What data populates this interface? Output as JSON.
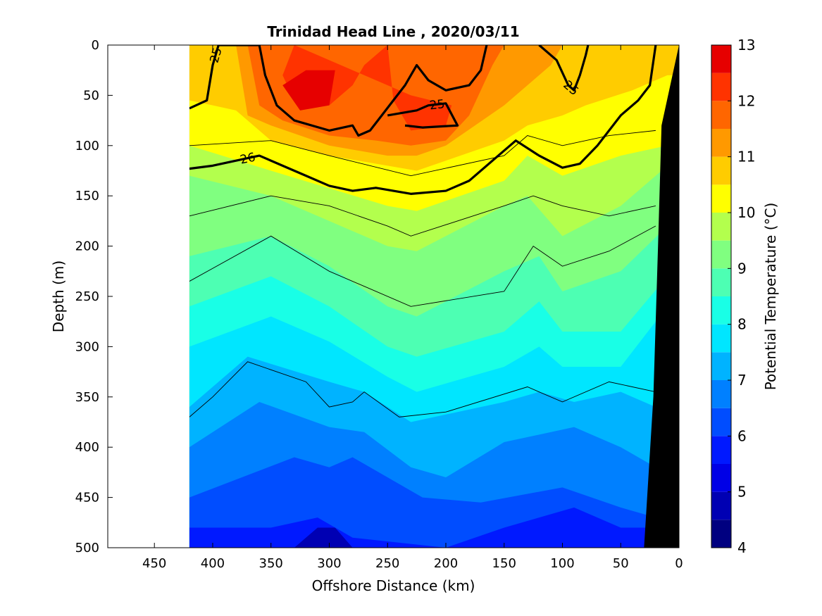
{
  "chart_data": {
    "type": "heatmap",
    "title": "Trinidad Head Line , 2020/03/11",
    "xlabel": "Offshore Distance (km)",
    "ylabel": "Depth (m)",
    "colorbar_label": "Potential Temperature (°C)",
    "xlim": [
      490,
      0
    ],
    "ylim": [
      0,
      500
    ],
    "x_direction": "reversed",
    "y_direction": "reversed",
    "x_ticks": [
      450,
      400,
      350,
      300,
      250,
      200,
      150,
      100,
      50,
      0
    ],
    "y_ticks": [
      0,
      50,
      100,
      150,
      200,
      250,
      300,
      350,
      400,
      450,
      500
    ],
    "colorbar_ticks": [
      4,
      5,
      6,
      7,
      8,
      9,
      10,
      11,
      12,
      13
    ],
    "colorbar_levels": [
      {
        "min": 4.0,
        "max": 4.5,
        "color": "#000080"
      },
      {
        "min": 4.5,
        "max": 5.0,
        "color": "#0000b3"
      },
      {
        "min": 5.0,
        "max": 5.5,
        "color": "#0000e6"
      },
      {
        "min": 5.5,
        "max": 6.0,
        "color": "#0019ff"
      },
      {
        "min": 6.0,
        "max": 6.5,
        "color": "#004dff"
      },
      {
        "min": 6.5,
        "max": 7.0,
        "color": "#0080ff"
      },
      {
        "min": 7.0,
        "max": 7.5,
        "color": "#00b3ff"
      },
      {
        "min": 7.5,
        "max": 8.0,
        "color": "#00e6ff"
      },
      {
        "min": 8.0,
        "max": 8.5,
        "color": "#19ffe6"
      },
      {
        "min": 8.5,
        "max": 9.0,
        "color": "#4dffb3"
      },
      {
        "min": 9.0,
        "max": 9.5,
        "color": "#80ff80"
      },
      {
        "min": 9.5,
        "max": 10.0,
        "color": "#b3ff4d"
      },
      {
        "min": 10.0,
        "max": 10.5,
        "color": "#ffff00"
      },
      {
        "min": 10.5,
        "max": 11.0,
        "color": "#ffcc00"
      },
      {
        "min": 11.0,
        "max": 11.5,
        "color": "#ff9900"
      },
      {
        "min": 11.5,
        "max": 12.0,
        "color": "#ff6600"
      },
      {
        "min": 12.0,
        "max": 12.5,
        "color": "#ff3300"
      },
      {
        "min": 12.5,
        "max": 13.0,
        "color": "#e60000"
      }
    ],
    "data_extent_km": [
      420,
      0
    ],
    "temperature_bands": [
      {
        "level": 10,
        "color": "#ffff00",
        "depth_profile": [
          [
            420,
            80
          ],
          [
            400,
            90
          ],
          [
            350,
            110
          ],
          [
            300,
            125
          ],
          [
            250,
            135
          ],
          [
            225,
            140
          ],
          [
            200,
            130
          ],
          [
            150,
            115
          ],
          [
            130,
            95
          ],
          [
            100,
            90
          ],
          [
            70,
            85
          ],
          [
            30,
            80
          ],
          [
            10,
            80
          ]
        ]
      },
      {
        "level": 10.5,
        "color": "#ffcc00",
        "depth_profile": [
          [
            420,
            55
          ],
          [
            400,
            60
          ],
          [
            380,
            65
          ],
          [
            350,
            95
          ],
          [
            300,
            110
          ],
          [
            250,
            120
          ],
          [
            225,
            125
          ],
          [
            200,
            115
          ],
          [
            150,
            95
          ],
          [
            130,
            80
          ],
          [
            100,
            70
          ],
          [
            80,
            60
          ],
          [
            40,
            45
          ],
          [
            10,
            30
          ]
        ]
      },
      {
        "level": 11,
        "color": "#ff9900",
        "depth_profile": [
          [
            420,
            0
          ],
          [
            380,
            0
          ],
          [
            370,
            70
          ],
          [
            350,
            80
          ],
          [
            300,
            100
          ],
          [
            250,
            110
          ],
          [
            225,
            110
          ],
          [
            200,
            100
          ],
          [
            175,
            80
          ],
          [
            150,
            60
          ],
          [
            130,
            40
          ],
          [
            110,
            20
          ],
          [
            100,
            0
          ],
          [
            380,
            0
          ]
        ]
      },
      {
        "level": 11.5,
        "color": "#ff6600",
        "depth_profile": [
          [
            370,
            0
          ],
          [
            360,
            60
          ],
          [
            340,
            75
          ],
          [
            300,
            90
          ],
          [
            260,
            95
          ],
          [
            230,
            100
          ],
          [
            200,
            95
          ],
          [
            180,
            70
          ],
          [
            170,
            45
          ],
          [
            160,
            20
          ],
          [
            150,
            0
          ]
        ]
      },
      {
        "level": 12,
        "color": "#ff3300",
        "depth_profile": [
          [
            330,
            0
          ],
          [
            340,
            30
          ],
          [
            330,
            55
          ],
          [
            300,
            60
          ],
          [
            280,
            40
          ],
          [
            270,
            20
          ],
          [
            250,
            0
          ],
          [
            245,
            55
          ],
          [
            230,
            85
          ],
          [
            200,
            80
          ],
          [
            195,
            60
          ],
          [
            230,
            50
          ]
        ]
      },
      {
        "level": 12.5,
        "color": "#e60000",
        "depth_profile": [
          [
            340,
            40
          ],
          [
            325,
            65
          ],
          [
            300,
            60
          ],
          [
            295,
            25
          ],
          [
            320,
            25
          ]
        ]
      }
    ],
    "deep_band_depths": [
      {
        "level": 9.5,
        "color": "#b3ff4d",
        "depth_profile": [
          [
            420,
            100
          ],
          [
            350,
            125
          ],
          [
            250,
            160
          ],
          [
            225,
            165
          ],
          [
            150,
            135
          ],
          [
            130,
            110
          ],
          [
            100,
            130
          ],
          [
            50,
            110
          ],
          [
            10,
            100
          ]
        ]
      },
      {
        "level": 9,
        "color": "#80ff80",
        "depth_profile": [
          [
            420,
            130
          ],
          [
            350,
            150
          ],
          [
            250,
            200
          ],
          [
            225,
            205
          ],
          [
            150,
            160
          ],
          [
            130,
            150
          ],
          [
            100,
            190
          ],
          [
            50,
            160
          ],
          [
            10,
            120
          ]
        ]
      },
      {
        "level": 8.5,
        "color": "#4dffb3",
        "depth_profile": [
          [
            420,
            210
          ],
          [
            350,
            190
          ],
          [
            300,
            220
          ],
          [
            250,
            260
          ],
          [
            225,
            270
          ],
          [
            150,
            225
          ],
          [
            120,
            210
          ],
          [
            100,
            245
          ],
          [
            50,
            225
          ],
          [
            10,
            180
          ]
        ]
      },
      {
        "level": 8,
        "color": "#19ffe6",
        "depth_profile": [
          [
            420,
            260
          ],
          [
            350,
            230
          ],
          [
            300,
            260
          ],
          [
            250,
            300
          ],
          [
            225,
            310
          ],
          [
            150,
            285
          ],
          [
            120,
            255
          ],
          [
            100,
            285
          ],
          [
            50,
            285
          ],
          [
            10,
            230
          ]
        ]
      },
      {
        "level": 7.5,
        "color": "#00e6ff",
        "depth_profile": [
          [
            420,
            300
          ],
          [
            350,
            270
          ],
          [
            300,
            295
          ],
          [
            250,
            330
          ],
          [
            225,
            345
          ],
          [
            150,
            320
          ],
          [
            120,
            300
          ],
          [
            100,
            320
          ],
          [
            50,
            320
          ],
          [
            10,
            260
          ]
        ]
      },
      {
        "level": 7,
        "color": "#00b3ff",
        "depth_profile": [
          [
            420,
            360
          ],
          [
            370,
            310
          ],
          [
            300,
            335
          ],
          [
            270,
            345
          ],
          [
            230,
            375
          ],
          [
            150,
            355
          ],
          [
            120,
            345
          ],
          [
            90,
            355
          ],
          [
            50,
            345
          ],
          [
            20,
            360
          ]
        ]
      },
      {
        "level": 6.5,
        "color": "#0080ff",
        "depth_profile": [
          [
            420,
            400
          ],
          [
            360,
            355
          ],
          [
            300,
            380
          ],
          [
            270,
            385
          ],
          [
            230,
            420
          ],
          [
            200,
            430
          ],
          [
            150,
            395
          ],
          [
            90,
            380
          ],
          [
            50,
            400
          ],
          [
            20,
            420
          ]
        ]
      },
      {
        "level": 6,
        "color": "#004dff",
        "depth_profile": [
          [
            420,
            450
          ],
          [
            330,
            410
          ],
          [
            300,
            420
          ],
          [
            280,
            410
          ],
          [
            220,
            450
          ],
          [
            170,
            455
          ],
          [
            100,
            440
          ],
          [
            50,
            460
          ],
          [
            20,
            470
          ]
        ]
      },
      {
        "level": 5.5,
        "color": "#0019ff",
        "depth_profile": [
          [
            420,
            480
          ],
          [
            350,
            480
          ],
          [
            310,
            470
          ],
          [
            280,
            490
          ],
          [
            200,
            500
          ],
          [
            150,
            480
          ],
          [
            90,
            460
          ],
          [
            50,
            480
          ]
        ]
      }
    ],
    "sigma_contours": [
      {
        "label": "25",
        "bold": true,
        "depth_profile": [
          [
            420,
            63
          ],
          [
            405,
            55
          ],
          [
            400,
            20
          ],
          [
            395,
            0
          ],
          [
            360,
            0
          ],
          [
            355,
            30
          ],
          [
            345,
            60
          ],
          [
            330,
            75
          ],
          [
            300,
            85
          ],
          [
            280,
            80
          ],
          [
            275,
            90
          ],
          [
            265,
            85
          ],
          [
            255,
            70
          ],
          [
            245,
            55
          ],
          [
            235,
            40
          ],
          [
            225,
            20
          ],
          [
            215,
            35
          ],
          [
            200,
            45
          ],
          [
            180,
            40
          ],
          [
            170,
            25
          ],
          [
            165,
            0
          ]
        ]
      },
      {
        "label": "25",
        "bold": true,
        "depth_profile": [
          [
            250,
            70
          ],
          [
            225,
            65
          ],
          [
            215,
            60
          ],
          [
            200,
            58
          ],
          [
            190,
            80
          ],
          [
            220,
            82
          ],
          [
            235,
            80
          ]
        ]
      },
      {
        "label": "25",
        "bold": true,
        "depth_profile": [
          [
            120,
            0
          ],
          [
            105,
            15
          ],
          [
            95,
            40
          ],
          [
            90,
            45
          ],
          [
            85,
            30
          ],
          [
            80,
            10
          ],
          [
            78,
            0
          ]
        ]
      },
      {
        "label": "26",
        "bold": true,
        "depth_profile": [
          [
            420,
            123
          ],
          [
            400,
            120
          ],
          [
            380,
            115
          ],
          [
            360,
            110
          ],
          [
            340,
            120
          ],
          [
            320,
            130
          ],
          [
            300,
            140
          ],
          [
            280,
            145
          ],
          [
            260,
            142
          ],
          [
            230,
            148
          ],
          [
            200,
            145
          ],
          [
            180,
            135
          ],
          [
            160,
            115
          ],
          [
            140,
            95
          ],
          [
            120,
            110
          ],
          [
            100,
            122
          ],
          [
            85,
            118
          ],
          [
            70,
            100
          ],
          [
            50,
            70
          ],
          [
            35,
            55
          ],
          [
            25,
            40
          ],
          [
            20,
            0
          ]
        ]
      }
    ],
    "isotherm_lines": [
      {
        "depth_profile": [
          [
            420,
            100
          ],
          [
            350,
            95
          ],
          [
            300,
            110
          ],
          [
            230,
            130
          ],
          [
            150,
            110
          ],
          [
            130,
            90
          ],
          [
            100,
            100
          ],
          [
            60,
            90
          ],
          [
            20,
            85
          ]
        ]
      },
      {
        "depth_profile": [
          [
            420,
            170
          ],
          [
            350,
            150
          ],
          [
            300,
            160
          ],
          [
            250,
            180
          ],
          [
            230,
            190
          ],
          [
            150,
            160
          ],
          [
            125,
            150
          ],
          [
            100,
            160
          ],
          [
            60,
            170
          ],
          [
            20,
            160
          ]
        ]
      },
      {
        "depth_profile": [
          [
            420,
            235
          ],
          [
            350,
            190
          ],
          [
            300,
            225
          ],
          [
            270,
            240
          ],
          [
            230,
            260
          ],
          [
            150,
            245
          ],
          [
            125,
            200
          ],
          [
            100,
            220
          ],
          [
            60,
            205
          ],
          [
            20,
            180
          ]
        ]
      },
      {
        "depth_profile": [
          [
            420,
            370
          ],
          [
            400,
            350
          ],
          [
            370,
            315
          ],
          [
            320,
            335
          ],
          [
            300,
            360
          ],
          [
            280,
            355
          ],
          [
            270,
            345
          ],
          [
            240,
            370
          ],
          [
            200,
            365
          ],
          [
            130,
            340
          ],
          [
            100,
            355
          ],
          [
            60,
            335
          ],
          [
            20,
            345
          ]
        ]
      }
    ],
    "bathymetry": {
      "label": "",
      "color": "#000000",
      "edge_profile": [
        [
          0,
          0
        ],
        [
          15,
          80
        ],
        [
          18,
          200
        ],
        [
          22,
          350
        ],
        [
          30,
          500
        ]
      ]
    }
  }
}
